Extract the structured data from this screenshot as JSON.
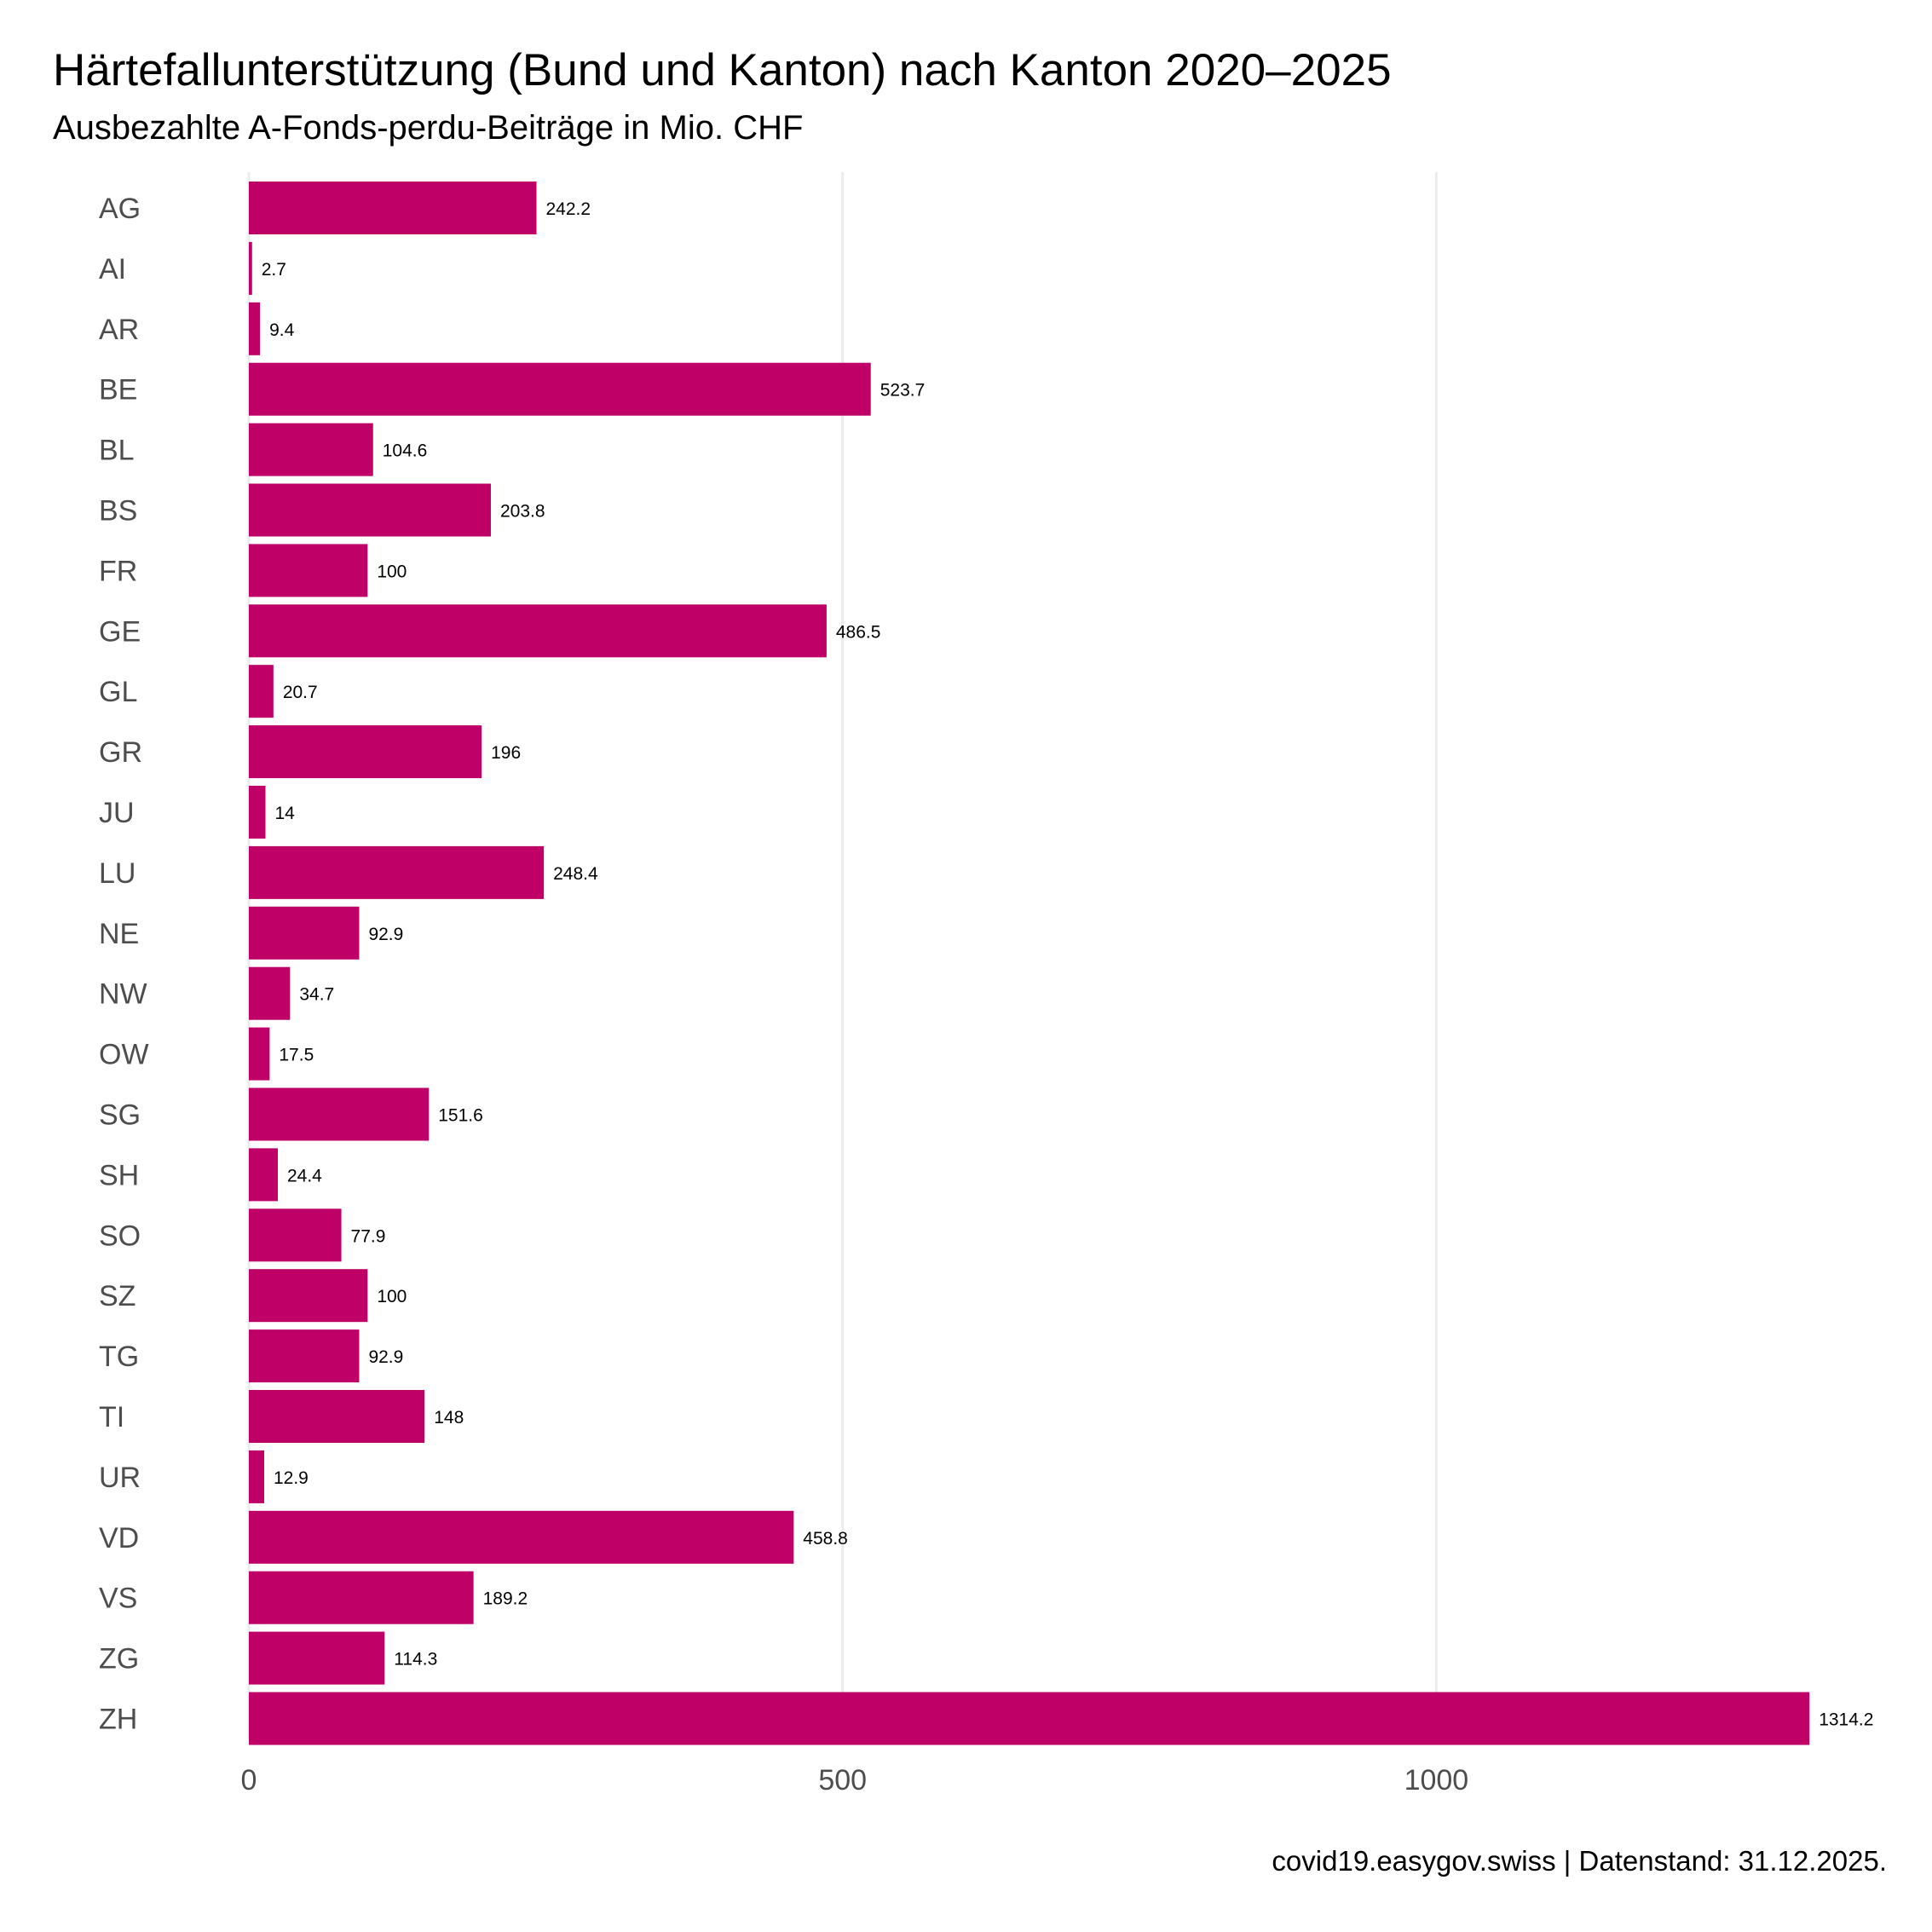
{
  "chart_data": {
    "type": "bar",
    "orientation": "horizontal",
    "title": "Härtefallunterstützung (Bund und Kanton) nach Kanton 2020–2025",
    "subtitle": "Ausbezahlte A-Fonds-perdu-Beiträge in Mio. CHF",
    "caption": "covid19.easygov.swiss | Datenstand: 31.12.2025.",
    "xlabel": "",
    "ylabel": "",
    "bar_color": "#BE0067",
    "grid": "vertical-major",
    "xlim": [
      0,
      1314.2
    ],
    "x_ticks": [
      0,
      500,
      1000
    ],
    "categories": [
      "AG",
      "AI",
      "AR",
      "BE",
      "BL",
      "BS",
      "FR",
      "GE",
      "GL",
      "GR",
      "JU",
      "LU",
      "NE",
      "NW",
      "OW",
      "SG",
      "SH",
      "SO",
      "SZ",
      "TG",
      "TI",
      "UR",
      "VD",
      "VS",
      "ZG",
      "ZH"
    ],
    "values": [
      242.2,
      2.7,
      9.4,
      523.7,
      104.6,
      203.8,
      100,
      486.5,
      20.7,
      196,
      14,
      248.4,
      92.9,
      34.7,
      17.5,
      151.6,
      24.4,
      77.9,
      100,
      92.9,
      148,
      12.9,
      458.8,
      189.2,
      114.3,
      1314.2
    ],
    "value_labels": [
      "242.2",
      "2.7",
      "9.4",
      "523.7",
      "104.6",
      "203.8",
      "100",
      "486.5",
      "20.7",
      "196",
      "14",
      "248.4",
      "92.9",
      "34.7",
      "17.5",
      "151.6",
      "24.4",
      "77.9",
      "100",
      "92.9",
      "148",
      "12.9",
      "458.8",
      "189.2",
      "114.3",
      "1314.2"
    ]
  }
}
